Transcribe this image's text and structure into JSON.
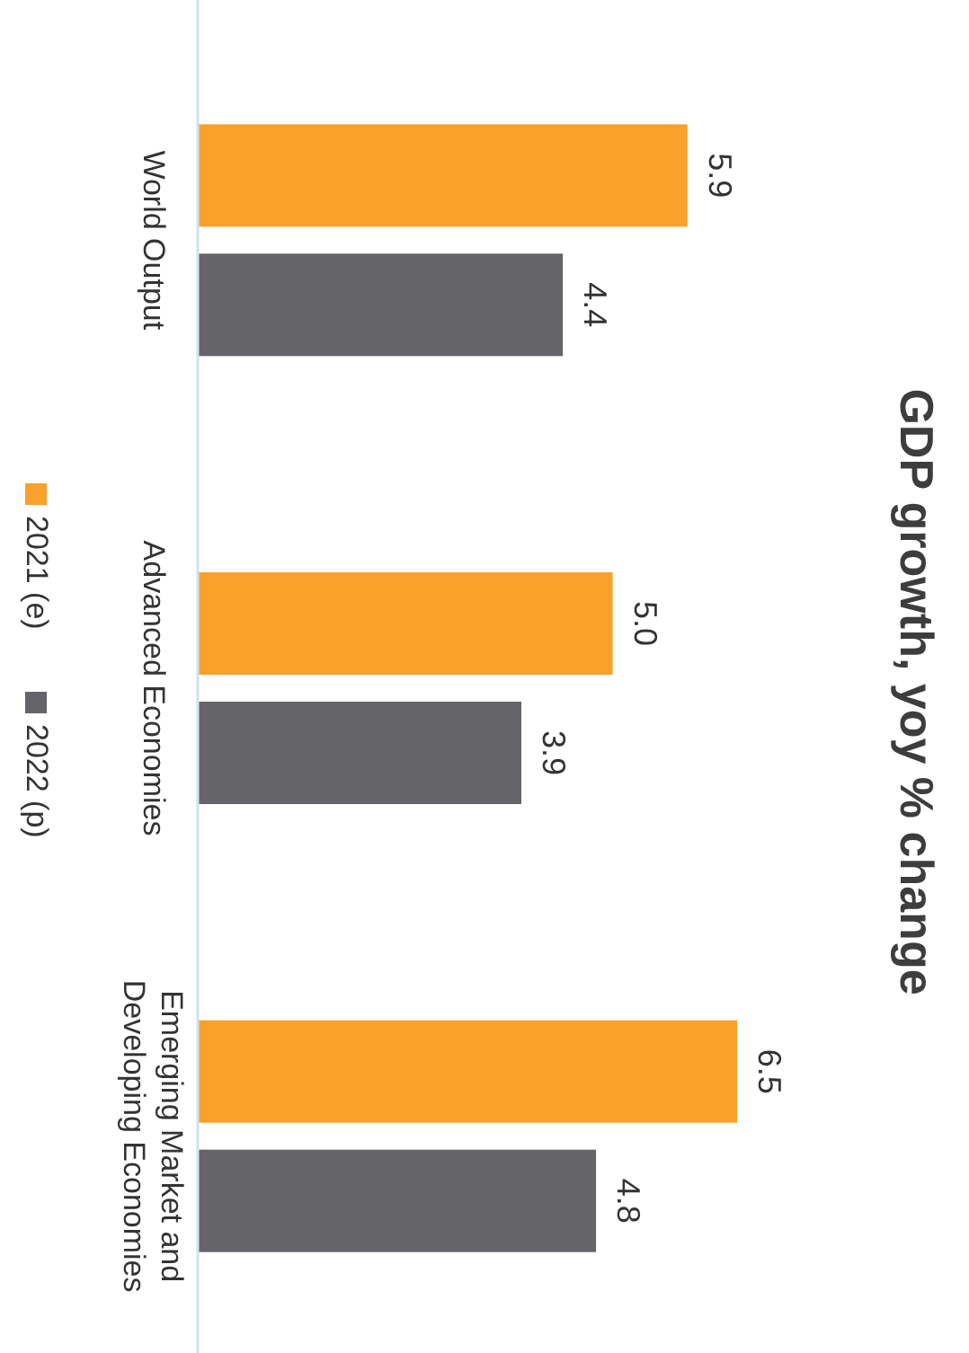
{
  "chart_data": {
    "type": "bar",
    "title": "GDP growth, yoy % change",
    "categories": [
      "World Output",
      "Advanced Economies",
      "Emerging Market and Developing Economies"
    ],
    "series": [
      {
        "name": "2021 (e)",
        "color": "#f9a12b",
        "values": [
          5.9,
          5.0,
          6.5
        ],
        "value_labels": [
          "5.9",
          "5.0",
          "6.5"
        ]
      },
      {
        "name": "2022 (p)",
        "color": "#646469",
        "values": [
          4.4,
          3.9,
          4.8
        ],
        "value_labels": [
          "4.4",
          "3.9",
          "4.8"
        ]
      }
    ],
    "orientation": "horizontal",
    "legend": "left"
  }
}
